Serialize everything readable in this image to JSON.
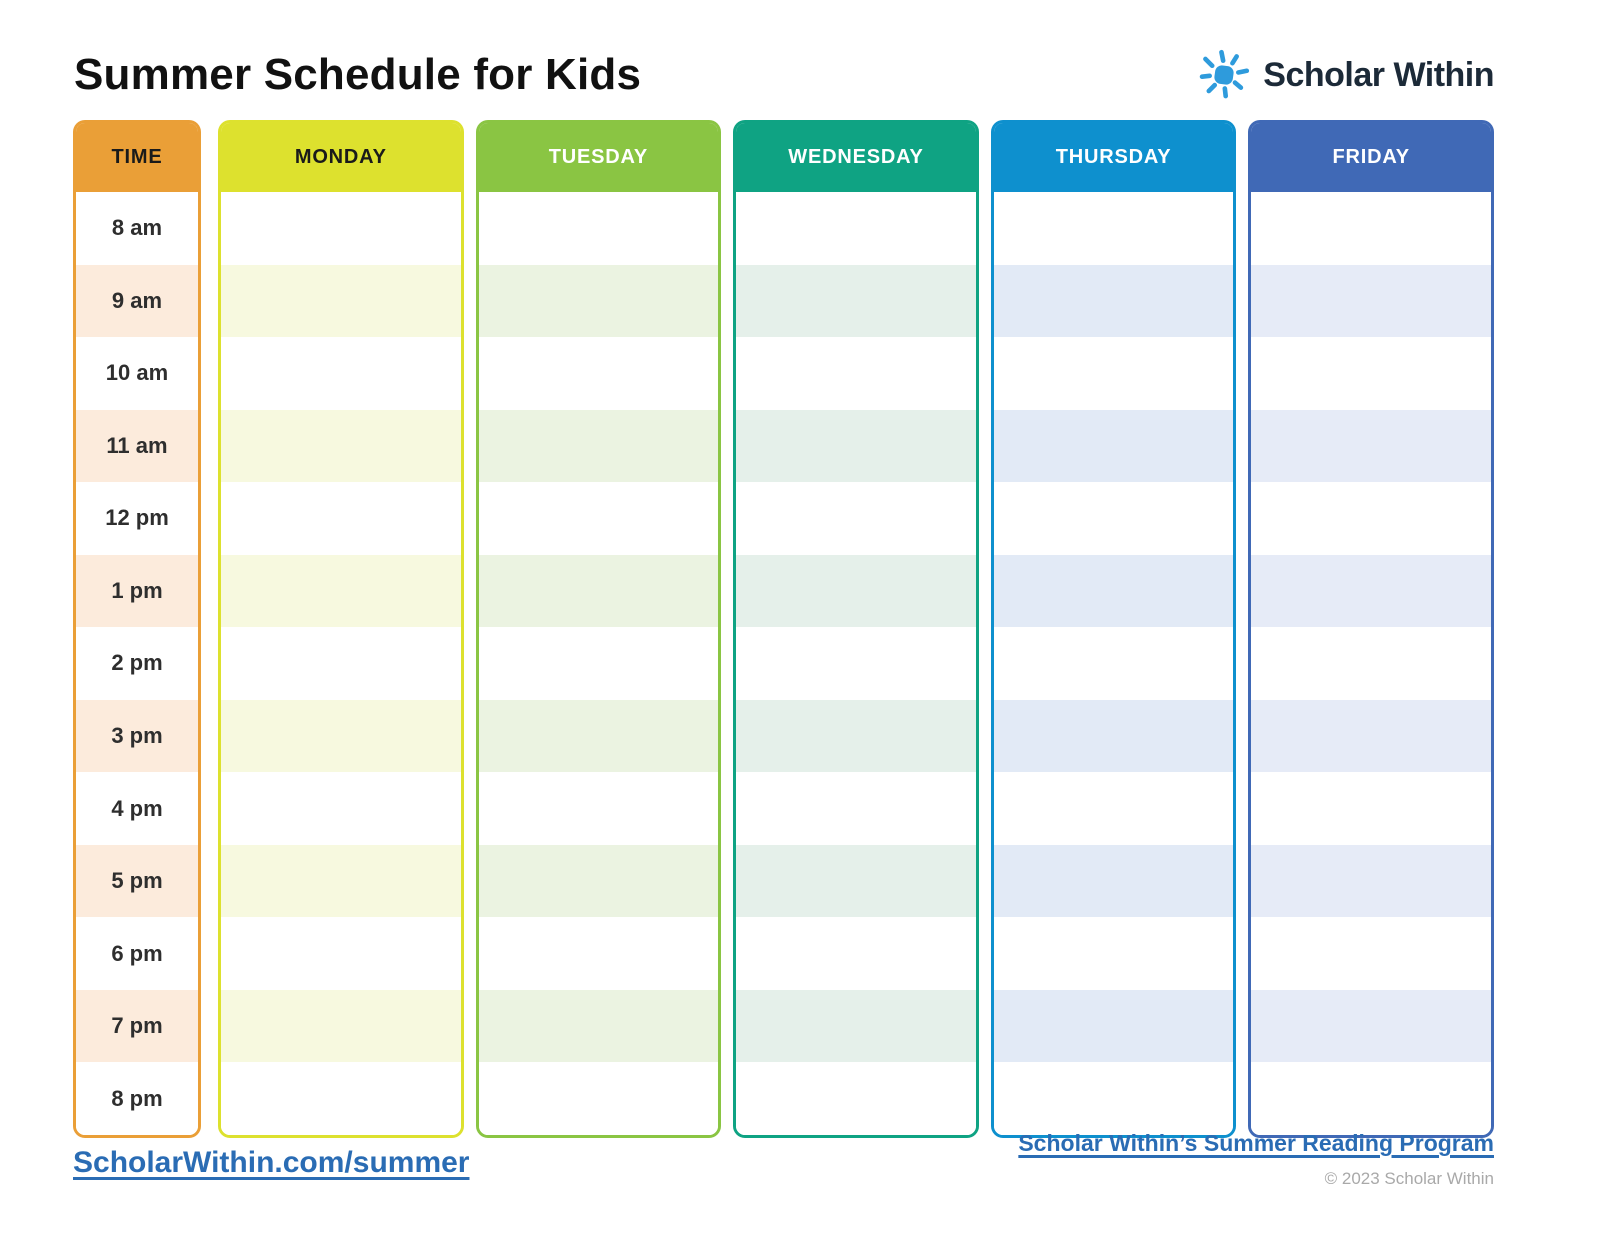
{
  "page": {
    "title": "Summer Schedule for Kids"
  },
  "brand": {
    "name": "Scholar Within",
    "icon": "sun-icon",
    "icon_color": "#2e9bdc",
    "text_color": "#1c2a38"
  },
  "schedule": {
    "time_column": {
      "header": "TIME",
      "header_color": "#ea9f37",
      "header_text_color": "#1a1a1a",
      "stripe_color": "#fcebdc",
      "times": [
        "8 am",
        "9 am",
        "10 am",
        "11 am",
        "12 pm",
        "1 pm",
        "2 pm",
        "3 pm",
        "4 pm",
        "5 pm",
        "6 pm",
        "7 pm",
        "8 pm"
      ]
    },
    "day_columns": [
      {
        "label": "MONDAY",
        "color": "#dde12e",
        "stripe_color": "#f7f9df",
        "header_text_color": "#1a1a1a"
      },
      {
        "label": "TUESDAY",
        "color": "#8ac543",
        "stripe_color": "#ebf3e1",
        "header_text_color": "#ffffff"
      },
      {
        "label": "WEDNESDAY",
        "color": "#0fa383",
        "stripe_color": "#e5f0ea",
        "header_text_color": "#ffffff"
      },
      {
        "label": "THURSDAY",
        "color": "#0e90ce",
        "stripe_color": "#e2eaf6",
        "header_text_color": "#ffffff"
      },
      {
        "label": "FRIDAY",
        "color": "#4069b6",
        "stripe_color": "#e6ebf7",
        "header_text_color": "#ffffff"
      }
    ]
  },
  "footer": {
    "left_link": "ScholarWithin.com/summer",
    "right_link": "Scholar Within’s Summer Reading Program",
    "copyright": "© 2023 Scholar Within",
    "link_color": "#2a6cb4"
  }
}
